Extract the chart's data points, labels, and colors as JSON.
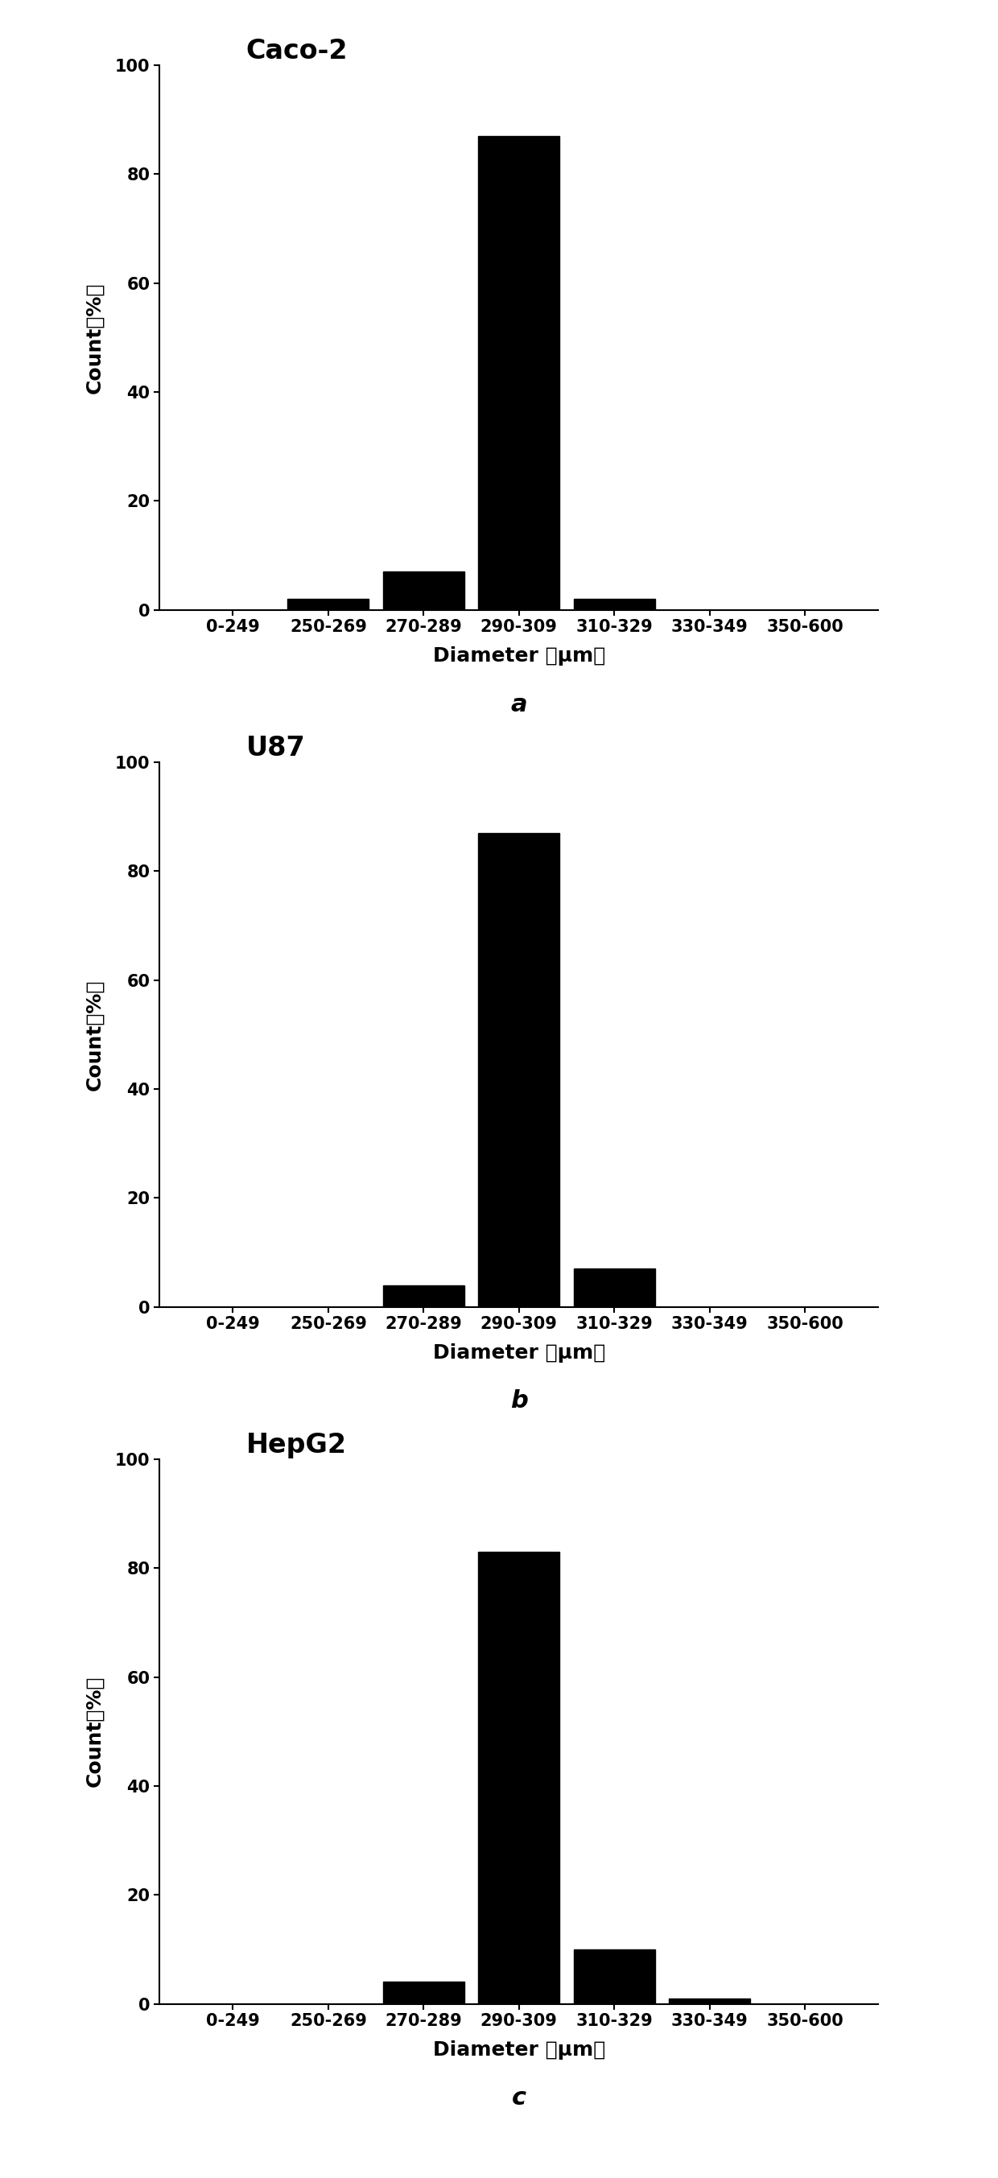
{
  "charts": [
    {
      "title": "Caco-2",
      "label": "a",
      "categories": [
        "0-249",
        "250-269",
        "270-289",
        "290-309",
        "310-329",
        "330-349",
        "350-600"
      ],
      "values": [
        0,
        2,
        7,
        87,
        2,
        0,
        0
      ]
    },
    {
      "title": "U87",
      "label": "b",
      "categories": [
        "0-249",
        "250-269",
        "270-289",
        "290-309",
        "310-329",
        "330-349",
        "350-600"
      ],
      "values": [
        0,
        0,
        4,
        87,
        7,
        0,
        0
      ]
    },
    {
      "title": "HepG2",
      "label": "c",
      "categories": [
        "0-249",
        "250-269",
        "270-289",
        "290-309",
        "310-329",
        "330-349",
        "350-600"
      ],
      "values": [
        0,
        0,
        4,
        83,
        10,
        1,
        0
      ]
    }
  ],
  "ylabel": "Count（%）",
  "xlabel": "Diameter （μm）",
  "ylim": [
    0,
    100
  ],
  "yticks": [
    0,
    20,
    40,
    60,
    80,
    100
  ],
  "bar_color": "#000000",
  "background_color": "#ffffff",
  "title_fontsize": 24,
  "tick_fontsize": 15,
  "axis_label_fontsize": 18,
  "subplot_label_fontsize": 22
}
